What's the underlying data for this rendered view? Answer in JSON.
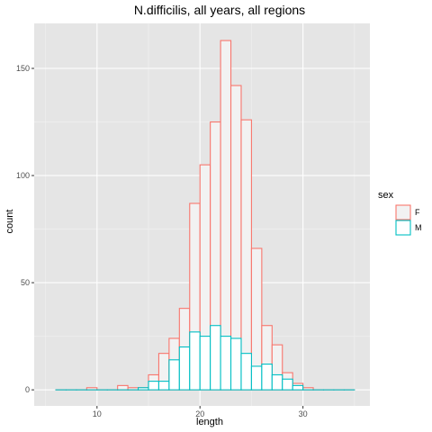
{
  "chart_data": {
    "type": "bar",
    "subtype": "histogram",
    "title": "N.difficilis, all years, all regions",
    "xlabel": "length",
    "ylabel": "count",
    "xlim": [
      3.9,
      36.5
    ],
    "ylim": [
      -7.5,
      171
    ],
    "x_ticks": [
      10,
      20,
      30
    ],
    "y_ticks": [
      0,
      50,
      100,
      150
    ],
    "x_tick_labels": [
      "10",
      "20",
      "30"
    ],
    "y_tick_labels": [
      "0",
      "50",
      "100",
      "150"
    ],
    "grid": true,
    "panel_background": "#e5e5e5",
    "legend": {
      "title": "sex",
      "position": "right"
    },
    "bin_edges": [
      6,
      7,
      8,
      9,
      10,
      11,
      12,
      13,
      14,
      15,
      16,
      17,
      18,
      19,
      20,
      21,
      22,
      23,
      24,
      25,
      26,
      27,
      28,
      29,
      30,
      31,
      32,
      33,
      34,
      35
    ],
    "series": [
      {
        "name": "F",
        "outline_color": "#f8766d",
        "fill_color": "#f2f2f2",
        "values": [
          0,
          0,
          0,
          1,
          0,
          0,
          2,
          1,
          1,
          7,
          17,
          24,
          38,
          87,
          105,
          125,
          163,
          142,
          126,
          66,
          30,
          21,
          8,
          3,
          1,
          0,
          0,
          0,
          0
        ]
      },
      {
        "name": "M",
        "outline_color": "#00bfc4",
        "fill_color": "#ffffff",
        "values": [
          0,
          0,
          0,
          0,
          0,
          0,
          0,
          0,
          1,
          4,
          4,
          14,
          20,
          27,
          25,
          30,
          25,
          24,
          17,
          11,
          12,
          7,
          5,
          2,
          0,
          0,
          0,
          0,
          0
        ]
      }
    ]
  }
}
